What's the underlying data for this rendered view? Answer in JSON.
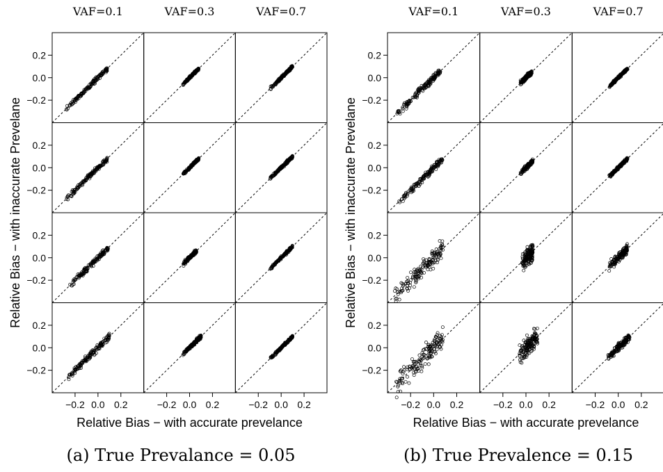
{
  "figure": {
    "captions": [
      "(a) True Prevalance = 0.05",
      "(b) True Prevalence = 0.15"
    ]
  },
  "chart_data": [
    {
      "type": "scatter",
      "caption": "(a) True Prevalance = 0.05",
      "xlabel": "Relative Bias − with accurate prevelance",
      "ylabel": "Relative Bias − with inaccurate Prevelane",
      "column_labels": [
        "VAF=0.1",
        "VAF=0.3",
        "VAF=0.7"
      ],
      "xticks": [
        -0.2,
        0.0,
        0.2
      ],
      "yticks": [
        -0.2,
        0.0,
        0.2
      ],
      "xtick_labels": [
        "−0.2",
        "0.0",
        "0.2"
      ],
      "ytick_labels": [
        "−0.2",
        "0.0",
        "0.2"
      ],
      "xlim": [
        -0.4,
        0.4
      ],
      "ylim": [
        -0.4,
        0.4
      ],
      "reference_line": "y = x (dashed)",
      "grid": false,
      "panels": [
        [
          {
            "x_range": [
              -0.28,
              0.08
            ],
            "spread": 0.01
          },
          {
            "x_range": [
              -0.06,
              0.08
            ],
            "spread": 0.005
          },
          {
            "x_range": [
              -0.1,
              0.1
            ],
            "spread": 0.006
          }
        ],
        [
          {
            "x_range": [
              -0.28,
              0.08
            ],
            "spread": 0.01
          },
          {
            "x_range": [
              -0.06,
              0.08
            ],
            "spread": 0.005
          },
          {
            "x_range": [
              -0.1,
              0.1
            ],
            "spread": 0.006
          }
        ],
        [
          {
            "x_range": [
              -0.26,
              0.09
            ],
            "spread": 0.012
          },
          {
            "x_range": [
              -0.06,
              0.06
            ],
            "spread": 0.008
          },
          {
            "x_range": [
              -0.1,
              0.1
            ],
            "spread": 0.006
          }
        ],
        [
          {
            "x_range": [
              -0.27,
              0.1
            ],
            "spread": 0.014
          },
          {
            "x_range": [
              -0.06,
              0.1
            ],
            "spread": 0.008
          },
          {
            "x_range": [
              -0.1,
              0.1
            ],
            "spread": 0.006
          }
        ]
      ]
    },
    {
      "type": "scatter",
      "caption": "(b) True Prevalence = 0.15",
      "xlabel": "Relative Bias − with accurate prevelance",
      "ylabel": "Relative Bias − with inaccurate Prevelane",
      "column_labels": [
        "VAF=0.1",
        "VAF=0.3",
        "VAF=0.7"
      ],
      "xticks": [
        -0.2,
        0.0,
        0.2
      ],
      "yticks": [
        -0.2,
        0.0,
        0.2
      ],
      "xtick_labels": [
        "−0.2",
        "0.0",
        "0.2"
      ],
      "ytick_labels": [
        "−0.2",
        "0.0",
        "0.2"
      ],
      "xlim": [
        -0.4,
        0.4
      ],
      "ylim": [
        -0.4,
        0.4
      ],
      "reference_line": "y = x (dashed)",
      "grid": false,
      "panels": [
        [
          {
            "x_range": [
              -0.32,
              0.06
            ],
            "spread": 0.015
          },
          {
            "x_range": [
              -0.05,
              0.05
            ],
            "spread": 0.01
          },
          {
            "x_range": [
              -0.08,
              0.08
            ],
            "spread": 0.006
          }
        ],
        [
          {
            "x_range": [
              -0.3,
              0.08
            ],
            "spread": 0.015
          },
          {
            "x_range": [
              -0.05,
              0.06
            ],
            "spread": 0.01
          },
          {
            "x_range": [
              -0.08,
              0.08
            ],
            "spread": 0.006
          }
        ],
        [
          {
            "x_range": [
              -0.34,
              0.08
            ],
            "spread": 0.04
          },
          {
            "x_range": [
              -0.04,
              0.06
            ],
            "spread": 0.04
          },
          {
            "x_range": [
              -0.08,
              0.08
            ],
            "spread": 0.02
          }
        ],
        [
          {
            "x_range": [
              -0.34,
              0.08
            ],
            "spread": 0.05
          },
          {
            "x_range": [
              -0.06,
              0.1
            ],
            "spread": 0.04
          },
          {
            "x_range": [
              -0.1,
              0.1
            ],
            "spread": 0.015
          }
        ]
      ]
    }
  ]
}
